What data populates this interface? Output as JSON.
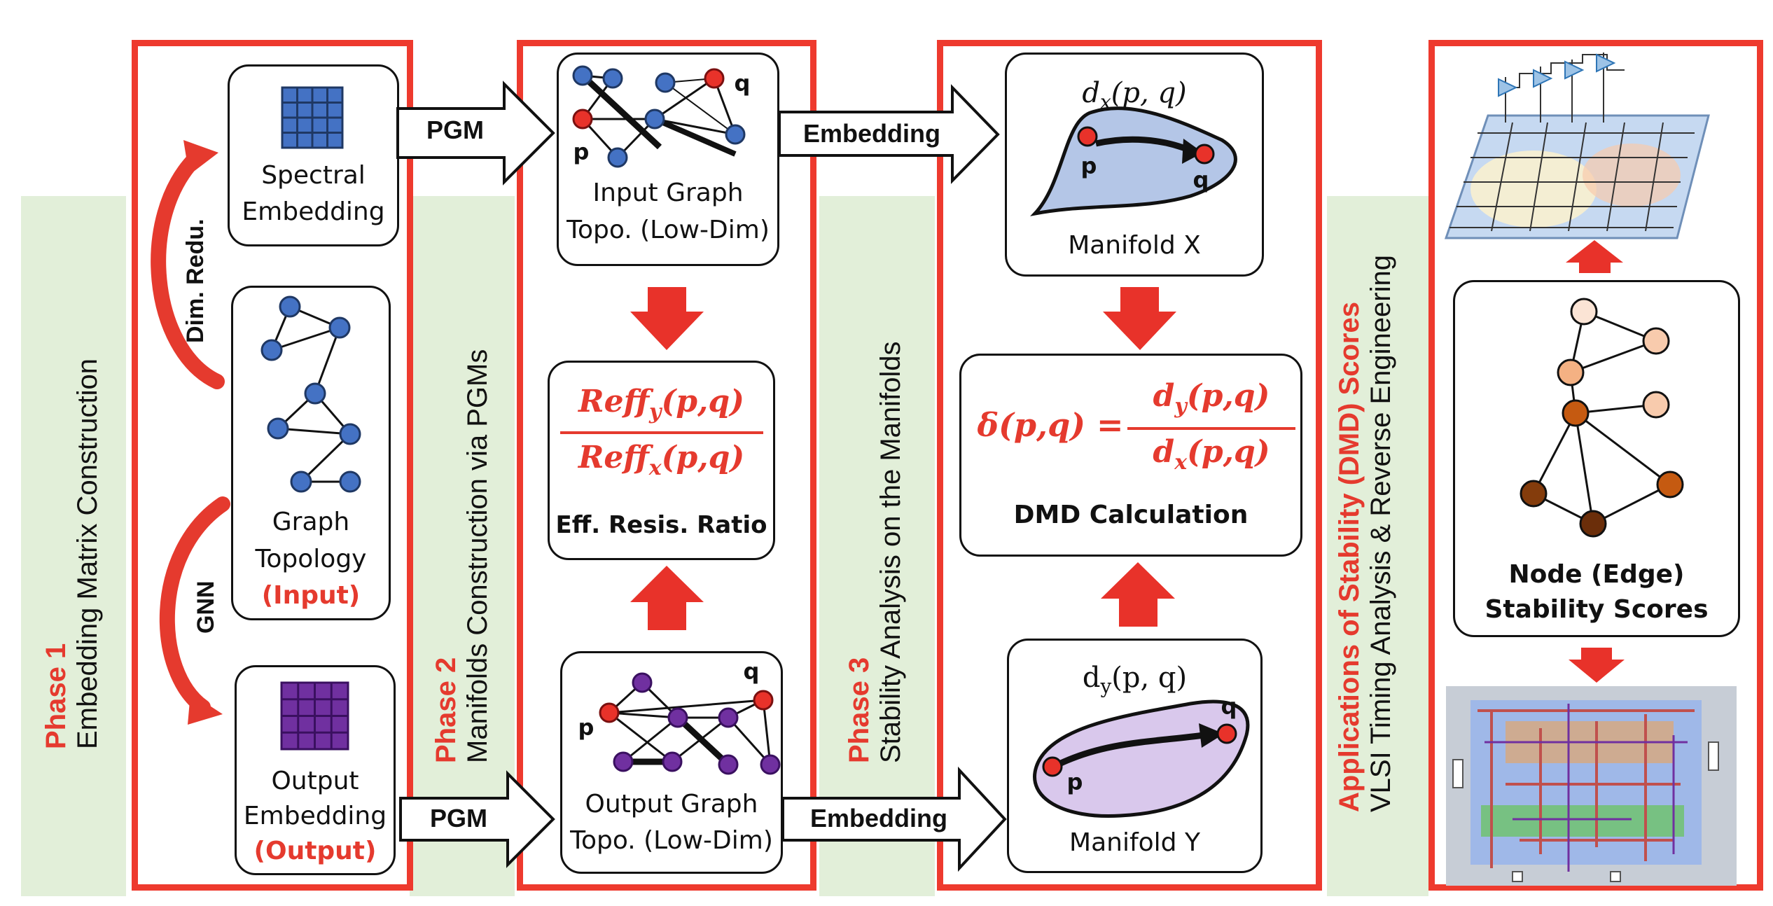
{
  "colors": {
    "accent_red": "#e53a2e",
    "band_green": "#e2efd9",
    "node_blue": "#4472c4",
    "node_purple": "#7030a0",
    "node_red": "#e8322a"
  },
  "phase1": {
    "label": "Phase 1",
    "title": "Embedding Matrix Construction",
    "arrow_top": "Dim. Redu.",
    "arrow_bottom": "GNN",
    "spectral_line1": "Spectral",
    "spectral_line2": "Embedding",
    "graph_line1": "Graph",
    "graph_line2": "Topology",
    "graph_tag": "(Input)",
    "output_line1": "Output",
    "output_line2": "Embedding",
    "output_tag": "(Output)"
  },
  "pgm_top": "PGM",
  "pgm_bottom": "PGM",
  "phase2": {
    "label": "Phase 2",
    "title": "Manifolds Construction via PGMs",
    "input_line1": "Input Graph",
    "input_line2": "Topo. (Low-Dim)",
    "output_line1": "Output Graph",
    "output_line2": "Topo. (Low-Dim)",
    "ratio_num": "Reff",
    "ratio_num_sub": "y",
    "ratio_den": "Reff",
    "ratio_den_sub": "x",
    "ratio_args": "(p,q)",
    "ratio_label": "Eff. Resis. Ratio",
    "node_p": "p",
    "node_q": "q"
  },
  "embedding_top": "Embedding",
  "embedding_bottom": "Embedding",
  "phase3": {
    "label": "Phase 3",
    "title": "Stability Analysis on the Manifolds",
    "dx": "d",
    "dx_sub": "x",
    "dx_args": "(p, q)",
    "dy": "d",
    "dy_sub": "y",
    "dy_args": "(p, q)",
    "manifold_x": "Manifold X",
    "manifold_y": "Manifold Y",
    "dmd_lhs": "δ(p,q) =",
    "dmd_num": "d",
    "dmd_num_sub": "y",
    "dmd_den": "d",
    "dmd_den_sub": "x",
    "dmd_args": "(p,q)",
    "dmd_label": "DMD Calculation",
    "node_p": "p",
    "node_q": "q"
  },
  "applications": {
    "title": "Applications of Stability (DMD) Scores",
    "subtitle": "VLSI Timing Analysis & Reverse Engineering",
    "scores_line1": "Node (Edge)",
    "scores_line2": "Stability Scores"
  }
}
